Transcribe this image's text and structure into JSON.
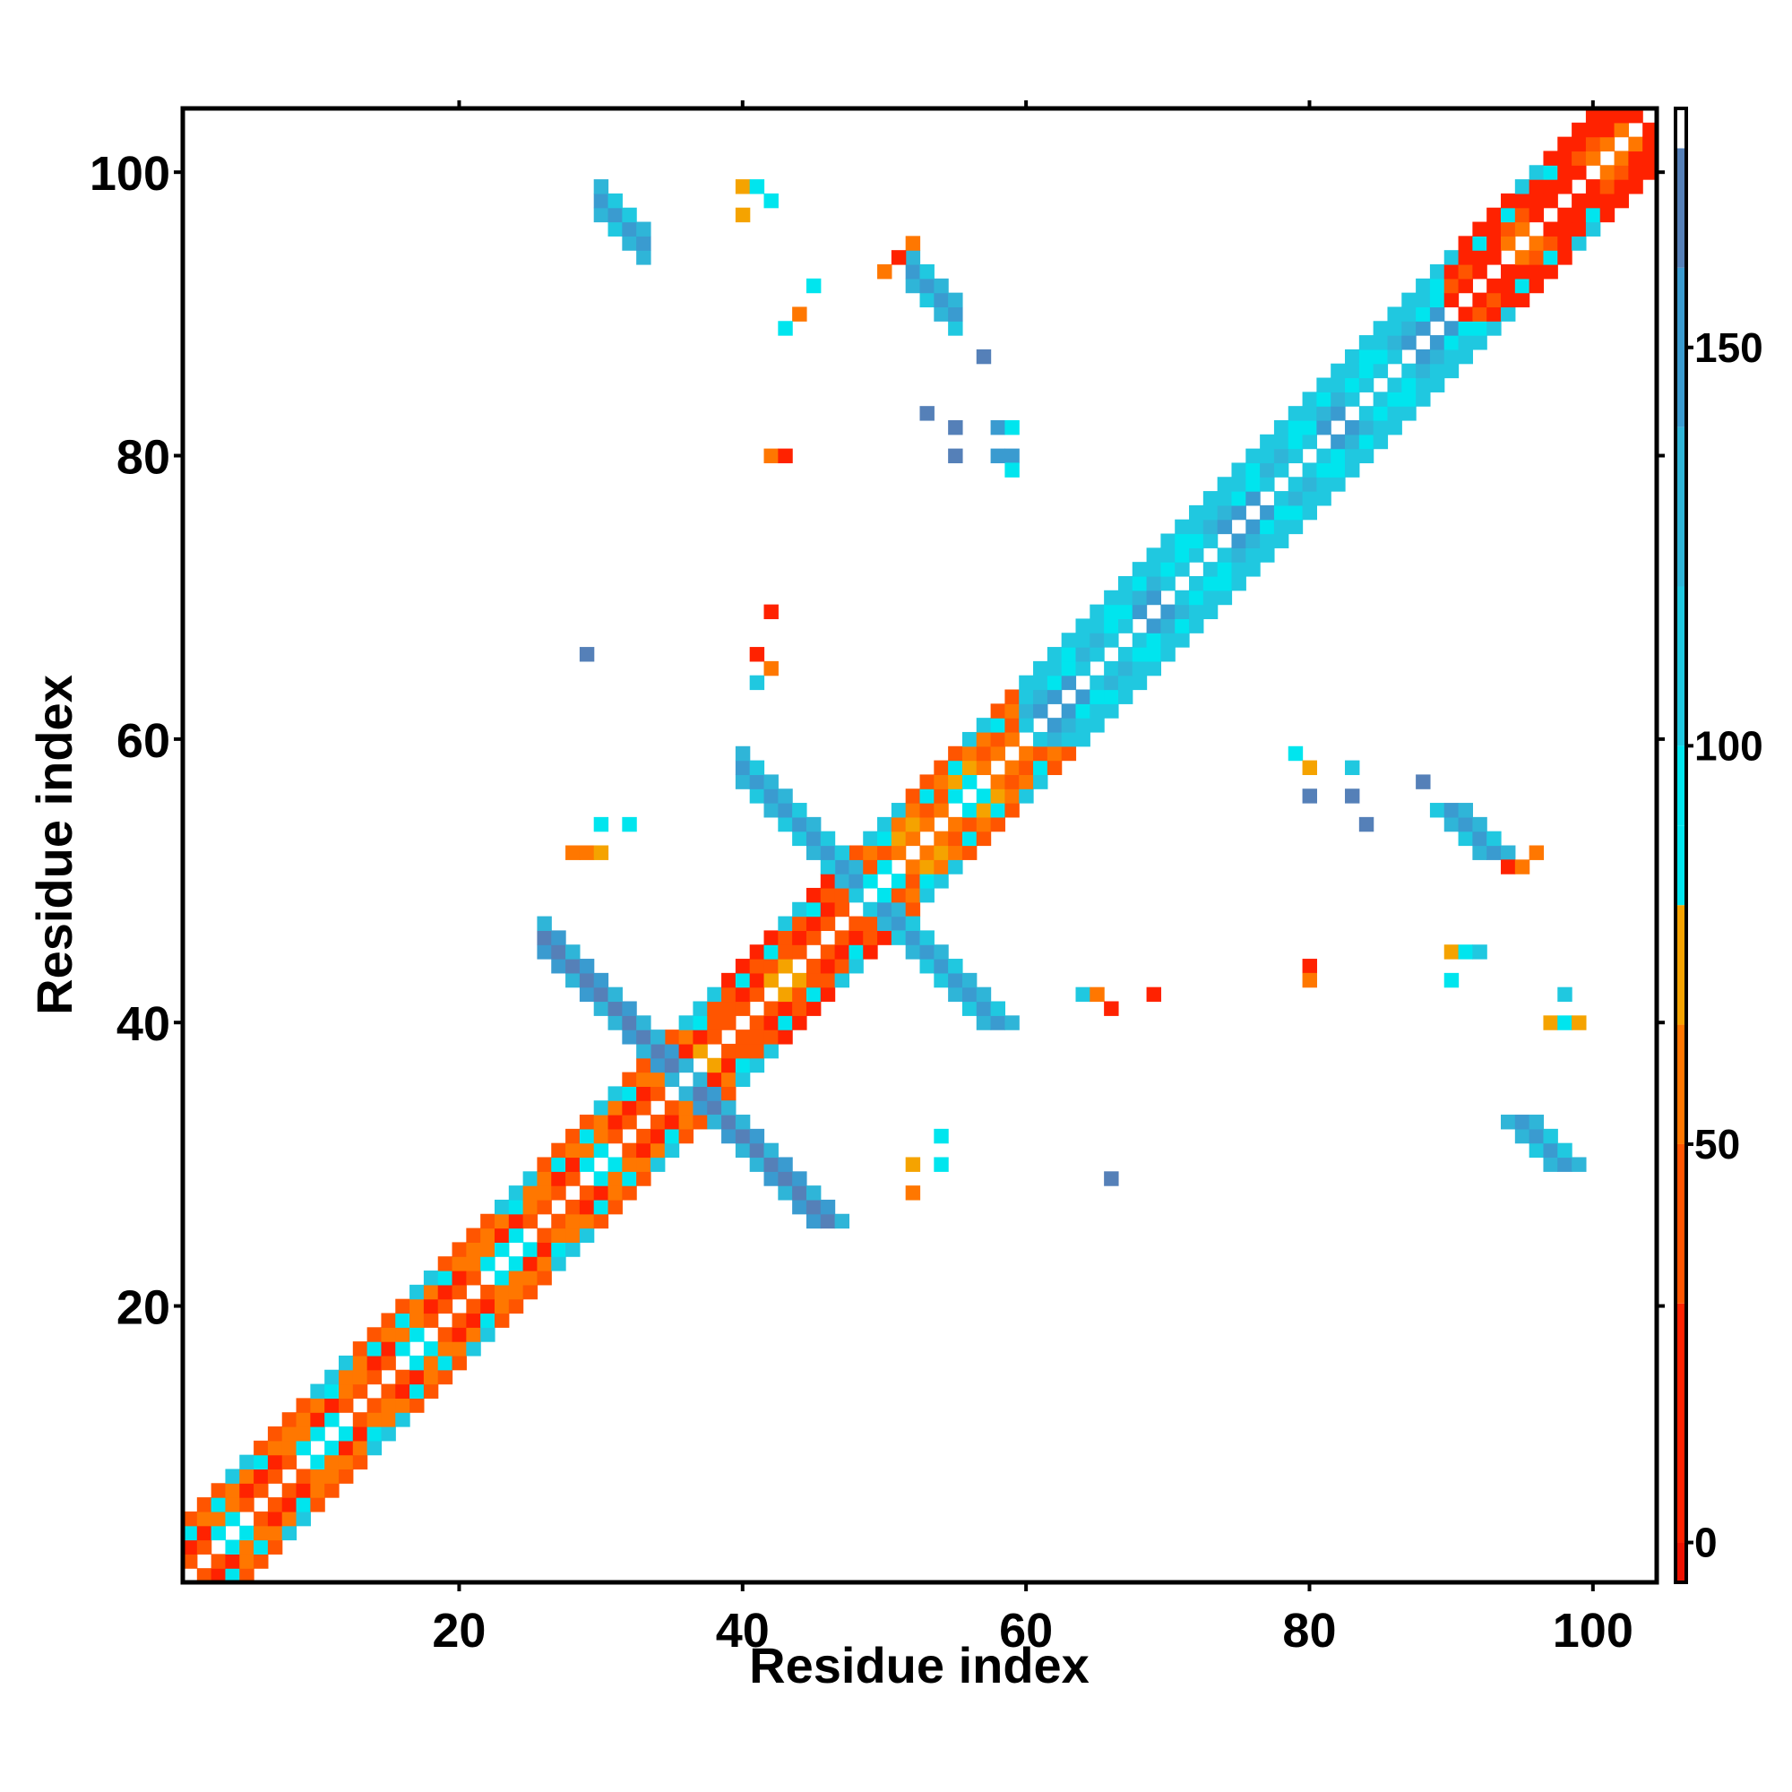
{
  "chart_data": {
    "type": "heatmap",
    "title": "",
    "xlabel": "Residue index",
    "ylabel": "Residue index",
    "xlim": [
      1,
      104
    ],
    "ylim": [
      1,
      104
    ],
    "x_ticks": [
      20,
      40,
      60,
      80,
      100
    ],
    "y_ticks": [
      20,
      40,
      60,
      80,
      100
    ],
    "x_tick_labels": [
      "20",
      "40",
      "60",
      "80",
      "100"
    ],
    "y_tick_labels": [
      "20",
      "40",
      "60",
      "80",
      "100"
    ],
    "grid": false,
    "colorbar": {
      "placement": "right",
      "range": [
        -5,
        180
      ],
      "ticks": [
        0,
        50,
        100,
        150
      ],
      "tick_labels": [
        "0",
        "50",
        "100",
        "150"
      ],
      "bands": [
        {
          "from": -5,
          "to": 0,
          "color": "#ee1100"
        },
        {
          "from": 0,
          "to": 30,
          "color": "#ff2200"
        },
        {
          "from": 30,
          "to": 50,
          "color": "#ff5500"
        },
        {
          "from": 50,
          "to": 65,
          "color": "#ff7700"
        },
        {
          "from": 65,
          "to": 80,
          "color": "#f5a300"
        },
        {
          "from": 80,
          "to": 90,
          "color": "#00e5ee"
        },
        {
          "from": 90,
          "to": 100,
          "color": "#00e5ee"
        },
        {
          "from": 100,
          "to": 120,
          "color": "#20c8e0"
        },
        {
          "from": 120,
          "to": 140,
          "color": "#2fb5d8"
        },
        {
          "from": 140,
          "to": 160,
          "color": "#3a9bd0"
        },
        {
          "from": 160,
          "to": 175,
          "color": "#5580b8"
        },
        {
          "from": 175,
          "to": 180,
          "color": "#ffffff"
        }
      ]
    },
    "regions": [
      {
        "kind": "diagonal_band",
        "start": 1,
        "end": 36,
        "value": 45
      },
      {
        "kind": "diagonal_band",
        "start": 37,
        "end": 47,
        "value": 30
      },
      {
        "kind": "diagonal_band",
        "start": 48,
        "end": 60,
        "value": 55
      },
      {
        "kind": "diagonal_band",
        "start": 60,
        "end": 90,
        "value": 110
      },
      {
        "kind": "diagonal_band",
        "start": 90,
        "end": 104,
        "value": 20
      },
      {
        "kind": "antiparallel_strip",
        "sum": 72,
        "a_start": 26,
        "a_end": 36,
        "value": 160
      },
      {
        "kind": "antiparallel_strip",
        "sum": 98,
        "a_start": 40,
        "a_end": 48,
        "value": 150
      },
      {
        "kind": "antiparallel_strip",
        "sum": 128,
        "a_start": 30,
        "a_end": 33,
        "value": 155
      },
      {
        "kind": "antiparallel_strip",
        "sum": 145,
        "a_start": 52,
        "a_end": 55,
        "value": 140
      },
      {
        "kind": "antiparallel_strip",
        "sum": 142,
        "a_start": 89,
        "a_end": 92,
        "value": 140
      }
    ],
    "points": [
      {
        "x": 40,
        "y": 99,
        "value": 70
      },
      {
        "x": 41,
        "y": 99,
        "value": 95
      },
      {
        "x": 42,
        "y": 98,
        "value": 95
      },
      {
        "x": 40,
        "y": 97,
        "value": 70
      },
      {
        "x": 45,
        "y": 92,
        "value": 95
      },
      {
        "x": 44,
        "y": 90,
        "value": 60
      },
      {
        "x": 43,
        "y": 89,
        "value": 95
      },
      {
        "x": 52,
        "y": 95,
        "value": 60
      },
      {
        "x": 51,
        "y": 94,
        "value": 10
      },
      {
        "x": 50,
        "y": 93,
        "value": 60
      },
      {
        "x": 57,
        "y": 87,
        "value": 160
      },
      {
        "x": 53,
        "y": 83,
        "value": 160
      },
      {
        "x": 55,
        "y": 82,
        "value": 160
      },
      {
        "x": 58,
        "y": 82,
        "value": 140
      },
      {
        "x": 59,
        "y": 82,
        "value": 95
      },
      {
        "x": 42,
        "y": 80,
        "value": 55
      },
      {
        "x": 43,
        "y": 80,
        "value": 10
      },
      {
        "x": 55,
        "y": 80,
        "value": 160
      },
      {
        "x": 58,
        "y": 80,
        "value": 140
      },
      {
        "x": 59,
        "y": 80,
        "value": 140
      },
      {
        "x": 59,
        "y": 79,
        "value": 95
      },
      {
        "x": 42,
        "y": 69,
        "value": 10
      },
      {
        "x": 29,
        "y": 66,
        "value": 160
      },
      {
        "x": 41,
        "y": 66,
        "value": 10
      },
      {
        "x": 42,
        "y": 65,
        "value": 55
      },
      {
        "x": 41,
        "y": 64,
        "value": 110
      },
      {
        "x": 30,
        "y": 54,
        "value": 95
      },
      {
        "x": 32,
        "y": 54,
        "value": 95
      },
      {
        "x": 28,
        "y": 52,
        "value": 55
      },
      {
        "x": 29,
        "y": 52,
        "value": 55
      },
      {
        "x": 30,
        "y": 52,
        "value": 70
      },
      {
        "x": 54,
        "y": 32,
        "value": 95
      },
      {
        "x": 54,
        "y": 30,
        "value": 95
      },
      {
        "x": 52,
        "y": 30,
        "value": 70
      },
      {
        "x": 52,
        "y": 28,
        "value": 55
      },
      {
        "x": 66,
        "y": 29,
        "value": 160
      },
      {
        "x": 64,
        "y": 42,
        "value": 110
      },
      {
        "x": 65,
        "y": 42,
        "value": 55
      },
      {
        "x": 66,
        "y": 41,
        "value": 10
      },
      {
        "x": 69,
        "y": 42,
        "value": 10
      },
      {
        "x": 80,
        "y": 44,
        "value": 10
      },
      {
        "x": 80,
        "y": 43,
        "value": 55
      },
      {
        "x": 79,
        "y": 59,
        "value": 95
      },
      {
        "x": 80,
        "y": 58,
        "value": 70
      },
      {
        "x": 83,
        "y": 58,
        "value": 110
      },
      {
        "x": 80,
        "y": 56,
        "value": 160
      },
      {
        "x": 83,
        "y": 56,
        "value": 160
      },
      {
        "x": 84,
        "y": 54,
        "value": 160
      },
      {
        "x": 88,
        "y": 57,
        "value": 160
      },
      {
        "x": 90,
        "y": 45,
        "value": 70
      },
      {
        "x": 91,
        "y": 45,
        "value": 95
      },
      {
        "x": 92,
        "y": 45,
        "value": 110
      },
      {
        "x": 90,
        "y": 43,
        "value": 95
      },
      {
        "x": 94,
        "y": 51,
        "value": 10
      },
      {
        "x": 95,
        "y": 51,
        "value": 55
      },
      {
        "x": 96,
        "y": 52,
        "value": 55
      },
      {
        "x": 97,
        "y": 40,
        "value": 70
      },
      {
        "x": 98,
        "y": 40,
        "value": 95
      },
      {
        "x": 99,
        "y": 40,
        "value": 70
      },
      {
        "x": 98,
        "y": 42,
        "value": 110
      }
    ]
  }
}
